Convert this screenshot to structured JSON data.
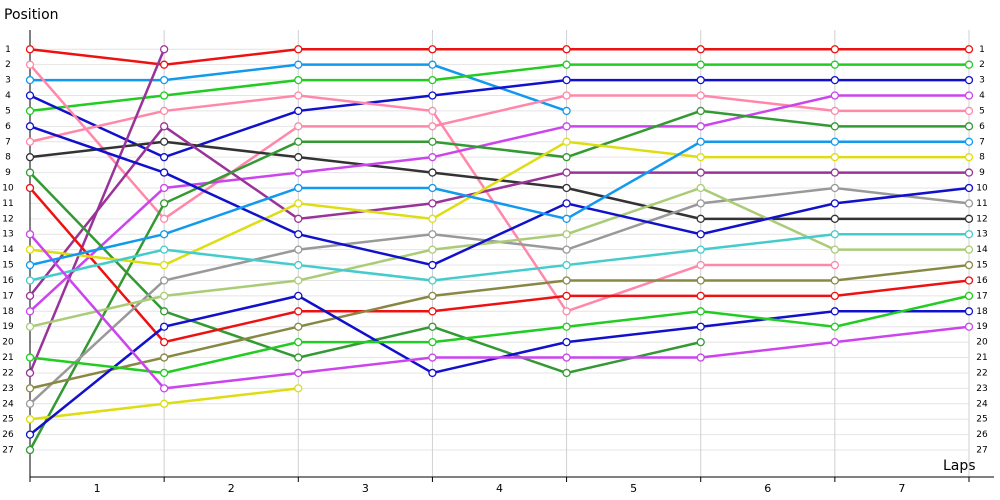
{
  "chart_data": {
    "type": "line",
    "y_axis_label": "Position",
    "x_axis_label": "Laps",
    "x": [
      0,
      1,
      2,
      3,
      4,
      5,
      6,
      7
    ],
    "xlim": [
      0,
      7
    ],
    "xticks": [
      {
        "value": 0.5,
        "label": "1"
      },
      {
        "value": 1.5,
        "label": "2"
      },
      {
        "value": 2.5,
        "label": "3"
      },
      {
        "value": 3.5,
        "label": "4"
      },
      {
        "value": 4.5,
        "label": "5"
      },
      {
        "value": 5.5,
        "label": "6"
      },
      {
        "value": 6.5,
        "label": "7"
      }
    ],
    "ylim": [
      28.75,
      -0.25
    ],
    "yticks": [
      1,
      2,
      3,
      4,
      5,
      6,
      7,
      8,
      9,
      10,
      11,
      12,
      13,
      14,
      15,
      16,
      17,
      18,
      19,
      20,
      21,
      22,
      23,
      24,
      25,
      26,
      27
    ],
    "grid": true,
    "series": [
      {
        "color": "#ee1111",
        "values": [
          1,
          2,
          1,
          1,
          1,
          1,
          1,
          1
        ]
      },
      {
        "color": "#1199ee",
        "values": [
          3,
          3,
          2,
          2,
          5,
          null,
          null,
          null
        ]
      },
      {
        "color": "#22cc22",
        "values": [
          5,
          4,
          3,
          3,
          2,
          2,
          2,
          2
        ]
      },
      {
        "color": "#1111cc",
        "values": [
          4,
          8,
          5,
          4,
          3,
          3,
          3,
          3
        ]
      },
      {
        "color": "#ff88aa",
        "values": [
          2,
          12,
          6,
          6,
          4,
          4,
          5,
          5
        ]
      },
      {
        "color": "#ff88aa",
        "values": [
          7,
          5,
          4,
          5,
          18,
          15,
          15,
          null
        ]
      },
      {
        "color": "#333333",
        "values": [
          8,
          7,
          8,
          9,
          10,
          12,
          12,
          12
        ]
      },
      {
        "color": "#cc44ee",
        "values": [
          18,
          10,
          9,
          8,
          6,
          6,
          4,
          4
        ]
      },
      {
        "color": "#993399",
        "values": [
          22,
          1,
          null,
          null,
          null,
          null,
          null,
          null
        ]
      },
      {
        "color": "#993399",
        "values": [
          17,
          6,
          12,
          11,
          9,
          9,
          9,
          9
        ]
      },
      {
        "color": "#339933",
        "values": [
          9,
          18,
          21,
          19,
          22,
          20,
          null,
          null
        ]
      },
      {
        "color": "#339933",
        "values": [
          27,
          11,
          7,
          7,
          8,
          5,
          6,
          6
        ]
      },
      {
        "color": "#ee1111",
        "values": [
          10,
          20,
          18,
          18,
          17,
          17,
          17,
          16
        ]
      },
      {
        "color": "#dddd11",
        "values": [
          14,
          15,
          11,
          12,
          7,
          8,
          8,
          8
        ]
      },
      {
        "color": "#dddd11",
        "values": [
          25,
          24,
          23,
          null,
          null,
          null,
          null,
          null
        ]
      },
      {
        "color": "#999999",
        "values": [
          24,
          16,
          14,
          13,
          14,
          11,
          10,
          11
        ]
      },
      {
        "color": "#aacc77",
        "values": [
          19,
          17,
          16,
          14,
          13,
          10,
          14,
          14
        ]
      },
      {
        "color": "#44cccc",
        "values": [
          16,
          14,
          15,
          16,
          15,
          14,
          13,
          13
        ]
      },
      {
        "color": "#888844",
        "values": [
          23,
          21,
          19,
          17,
          16,
          16,
          16,
          15
        ]
      },
      {
        "color": "#1111cc",
        "values": [
          26,
          19,
          17,
          22,
          20,
          19,
          18,
          18
        ]
      },
      {
        "color": "#22cc22",
        "values": [
          21,
          22,
          20,
          20,
          19,
          18,
          19,
          17
        ]
      },
      {
        "color": "#cc44ee",
        "values": [
          13,
          23,
          22,
          21,
          21,
          21,
          20,
          19
        ]
      },
      {
        "color": "#1111cc",
        "values": [
          6,
          9,
          13,
          15,
          11,
          13,
          11,
          10
        ]
      },
      {
        "color": "#1199ee",
        "values": [
          15,
          13,
          10,
          10,
          12,
          7,
          7,
          7
        ]
      }
    ]
  }
}
